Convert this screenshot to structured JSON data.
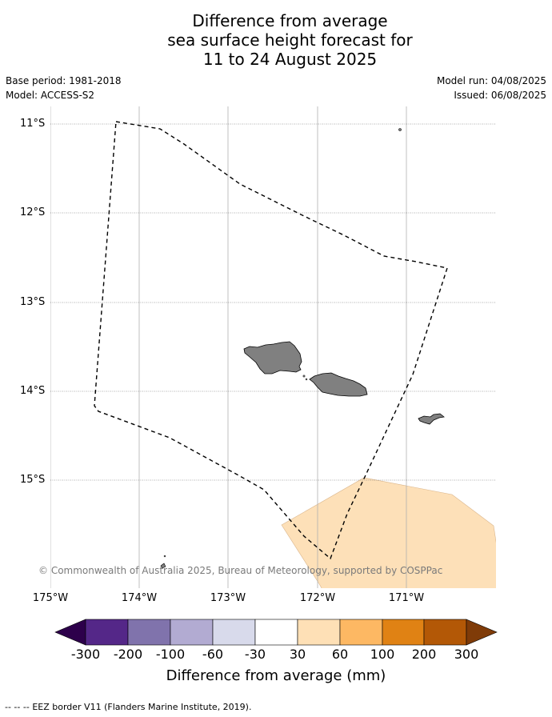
{
  "title": {
    "line1": "Difference from average",
    "line2": "sea surface height forecast for",
    "line3": "11 to 24 August 2025"
  },
  "meta": {
    "base_period": "Base period: 1981-2018",
    "model": "Model: ACCESS-S2",
    "model_run": "Model run: 04/08/2025",
    "issued": "Issued: 06/08/2025"
  },
  "map": {
    "lat_labels": [
      "11°S",
      "12°S",
      "13°S",
      "14°S",
      "15°S"
    ],
    "lon_labels": [
      "175°W",
      "174°W",
      "173°W",
      "172°W",
      "171°W"
    ],
    "land_color": "#808080",
    "anomaly_fill_color": "#fde0b8",
    "anomaly_category": "30 to 60",
    "copyright": "© Commonwealth of Australia 2025, Bureau of Meteorology, supported by COSPPac"
  },
  "colorbar": {
    "tick_labels": [
      "-300",
      "-200",
      "-100",
      "-60",
      "-30",
      "30",
      "60",
      "100",
      "200",
      "300"
    ],
    "colors": [
      "#2d004b",
      "#542788",
      "#8073ac",
      "#b2abd2",
      "#d8daeb",
      "#ffffff",
      "#fee0b6",
      "#fdb863",
      "#e08214",
      "#b35806",
      "#7f3b08"
    ],
    "label": "Difference from average (mm)"
  },
  "footer": {
    "legend_marker": "-- -- --",
    "text": "EEZ border V11 (Flanders Marine Institute, 2019)."
  }
}
